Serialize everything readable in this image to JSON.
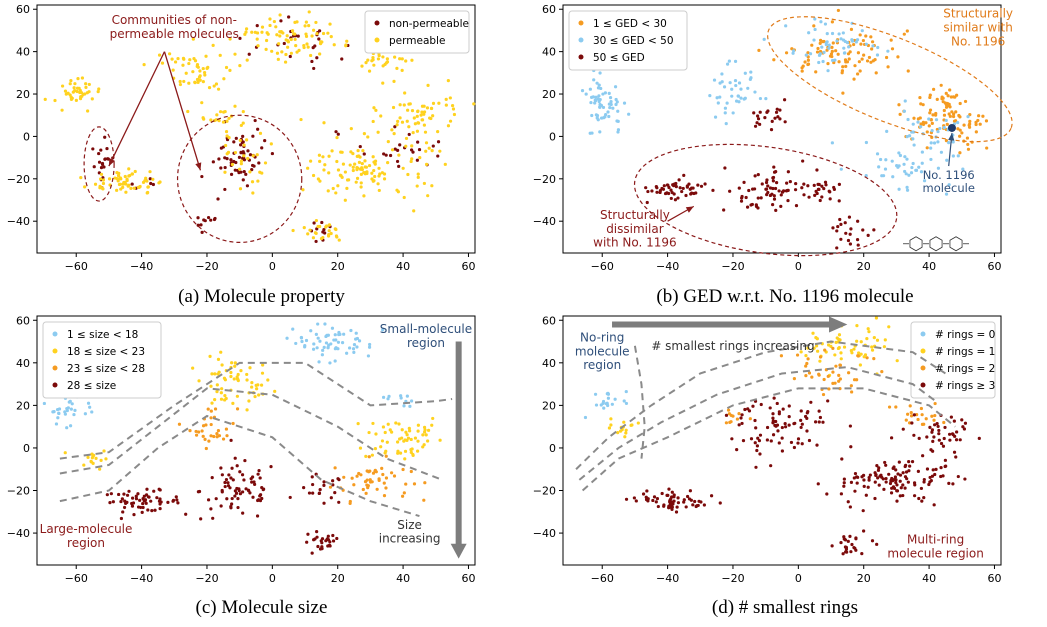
{
  "colors": {
    "dark_red": "#7b0a0a",
    "yellow": "#ffd21f",
    "orange": "#f59b21",
    "light_blue": "#8ccbf0",
    "annot_red": "#8b1a1a",
    "annot_orange": "#e07b1a",
    "annot_blue": "#2f4f7a",
    "guide_gray": "#8a8a8a"
  },
  "chart_data": [
    {
      "type": "scatter",
      "caption": "(a) Molecule property",
      "xlim": [
        -72,
        62
      ],
      "ylim": [
        -55,
        62
      ],
      "xticks": [
        -60,
        -40,
        -20,
        0,
        20,
        40,
        60
      ],
      "yticks": [
        -40,
        -20,
        0,
        20,
        40,
        60
      ],
      "legend_position": "top-right",
      "series": [
        {
          "name": "non-permeable",
          "color": "#7b0a0a",
          "clusters": [
            [
              -52,
              -10,
              3,
              10,
              20
            ],
            [
              -10,
              -10,
              6,
              12,
              60
            ],
            [
              -20,
              -40,
              3,
              3,
              10
            ],
            [
              15,
              -45,
              4,
              5,
              10
            ],
            [
              10,
              45,
              14,
              10,
              25
            ],
            [
              40,
              -5,
              12,
              15,
              25
            ],
            [
              -40,
              -22,
              4,
              3,
              6
            ]
          ]
        },
        {
          "name": "permeable",
          "color": "#ffd21f",
          "clusters": [
            [
              -60,
              20,
              5,
              8,
              40
            ],
            [
              -45,
              -22,
              10,
              4,
              60
            ],
            [
              -25,
              30,
              10,
              10,
              50
            ],
            [
              5,
              45,
              15,
              10,
              80
            ],
            [
              35,
              35,
              6,
              6,
              30
            ],
            [
              30,
              -15,
              15,
              12,
              120
            ],
            [
              45,
              10,
              10,
              10,
              60
            ],
            [
              15,
              -45,
              6,
              5,
              25
            ],
            [
              -10,
              -10,
              8,
              12,
              30
            ],
            [
              -15,
              10,
              6,
              8,
              20
            ]
          ]
        }
      ],
      "annotations": [
        {
          "text": "Communities of non-\npermeable molecules"
        }
      ]
    },
    {
      "type": "scatter",
      "caption": "(b) GED w.r.t. No. 1196 molecule",
      "xlim": [
        -72,
        62
      ],
      "ylim": [
        -55,
        62
      ],
      "xticks": [
        -60,
        -40,
        -20,
        0,
        20,
        40,
        60
      ],
      "yticks": [
        -40,
        -20,
        0,
        20,
        40,
        60
      ],
      "legend_position": "top-left",
      "series": [
        {
          "name": "1 ≤ GED < 30",
          "color": "#f59b21",
          "clusters": [
            [
              15,
              40,
              15,
              10,
              90
            ],
            [
              45,
              5,
              10,
              8,
              70
            ],
            [
              45,
              15,
              6,
              6,
              30
            ]
          ]
        },
        {
          "name": "30 ≤ GED < 50",
          "color": "#8ccbf0",
          "clusters": [
            [
              -60,
              15,
              6,
              12,
              60
            ],
            [
              -20,
              20,
              6,
              10,
              40
            ],
            [
              10,
              45,
              12,
              8,
              50
            ],
            [
              30,
              -15,
              12,
              8,
              40
            ],
            [
              40,
              0,
              10,
              10,
              40
            ]
          ]
        },
        {
          "name": "50 ≤ GED",
          "color": "#7b0a0a",
          "clusters": [
            [
              -38,
              -25,
              8,
              4,
              50
            ],
            [
              -10,
              -25,
              10,
              10,
              60
            ],
            [
              15,
              -45,
              6,
              5,
              20
            ],
            [
              -10,
              10,
              5,
              5,
              20
            ],
            [
              5,
              -25,
              8,
              6,
              30
            ]
          ]
        }
      ],
      "highlight_point": {
        "x": 47,
        "y": 4
      },
      "annotations": [
        {
          "text": "Structurally\nsimilar with\nNo. 1196"
        },
        {
          "text": "Structurally\ndissimilar\nwith No. 1196"
        },
        {
          "text": "No. 1196\nmolecule"
        }
      ]
    },
    {
      "type": "scatter",
      "caption": "(c) Molecule size",
      "xlim": [
        -72,
        62
      ],
      "ylim": [
        -55,
        62
      ],
      "xticks": [
        -60,
        -40,
        -20,
        0,
        20,
        40,
        60
      ],
      "yticks": [
        -40,
        -20,
        0,
        20,
        40,
        60
      ],
      "legend_position": "top-left",
      "series": [
        {
          "name": "1 ≤ size < 18",
          "color": "#8ccbf0",
          "clusters": [
            [
              -62,
              20,
              5,
              8,
              40
            ],
            [
              18,
              50,
              10,
              6,
              60
            ],
            [
              38,
              22,
              4,
              3,
              10
            ]
          ]
        },
        {
          "name": "18 ≤ size < 23",
          "color": "#ffd21f",
          "clusters": [
            [
              -12,
              30,
              10,
              10,
              60
            ],
            [
              40,
              5,
              10,
              10,
              60
            ],
            [
              -55,
              -5,
              4,
              4,
              15
            ]
          ]
        },
        {
          "name": "23 ≤ size < 28",
          "color": "#f59b21",
          "clusters": [
            [
              30,
              -15,
              10,
              8,
              50
            ],
            [
              -18,
              10,
              6,
              8,
              30
            ]
          ]
        },
        {
          "name": "28 ≤ size",
          "color": "#7b0a0a",
          "clusters": [
            [
              -40,
              -25,
              10,
              4,
              60
            ],
            [
              -10,
              -20,
              10,
              12,
              70
            ],
            [
              15,
              -45,
              5,
              5,
              25
            ],
            [
              15,
              -20,
              6,
              6,
              20
            ]
          ]
        }
      ],
      "annotations": [
        {
          "text": "Small-molecule\nregion"
        },
        {
          "text": "Large-molecule\nregion"
        },
        {
          "text": "Size\nincreasing"
        }
      ]
    },
    {
      "type": "scatter",
      "caption": "(d) # smallest rings",
      "xlim": [
        -72,
        62
      ],
      "ylim": [
        -55,
        62
      ],
      "xticks": [
        -60,
        -40,
        -20,
        0,
        20,
        40,
        60
      ],
      "yticks": [
        -40,
        -20,
        0,
        20,
        40,
        60
      ],
      "legend_position": "top-right",
      "series": [
        {
          "name": "# rings = 0",
          "color": "#8ccbf0",
          "clusters": [
            [
              -58,
              22,
              4,
              5,
              20
            ]
          ]
        },
        {
          "name": "# rings = 1",
          "color": "#ffd21f",
          "clusters": [
            [
              15,
              48,
              12,
              8,
              60
            ],
            [
              -55,
              10,
              4,
              4,
              15
            ]
          ]
        },
        {
          "name": "# rings = 2",
          "color": "#f59b21",
          "clusters": [
            [
              10,
              35,
              10,
              8,
              40
            ],
            [
              35,
              15,
              6,
              6,
              20
            ],
            [
              -20,
              15,
              4,
              4,
              10
            ]
          ]
        },
        {
          "name": "# rings ≥ 3",
          "color": "#7b0a0a",
          "clusters": [
            [
              -38,
              -25,
              10,
              4,
              60
            ],
            [
              -5,
              10,
              12,
              12,
              80
            ],
            [
              30,
              -15,
              15,
              10,
              120
            ],
            [
              15,
              -45,
              5,
              5,
              25
            ],
            [
              45,
              5,
              8,
              8,
              40
            ]
          ]
        }
      ],
      "annotations": [
        {
          "text": "No-ring\nmolecule\nregion"
        },
        {
          "text": "# smallest rings increasing"
        },
        {
          "text": "Multi-ring\nmolecule region"
        }
      ]
    }
  ]
}
